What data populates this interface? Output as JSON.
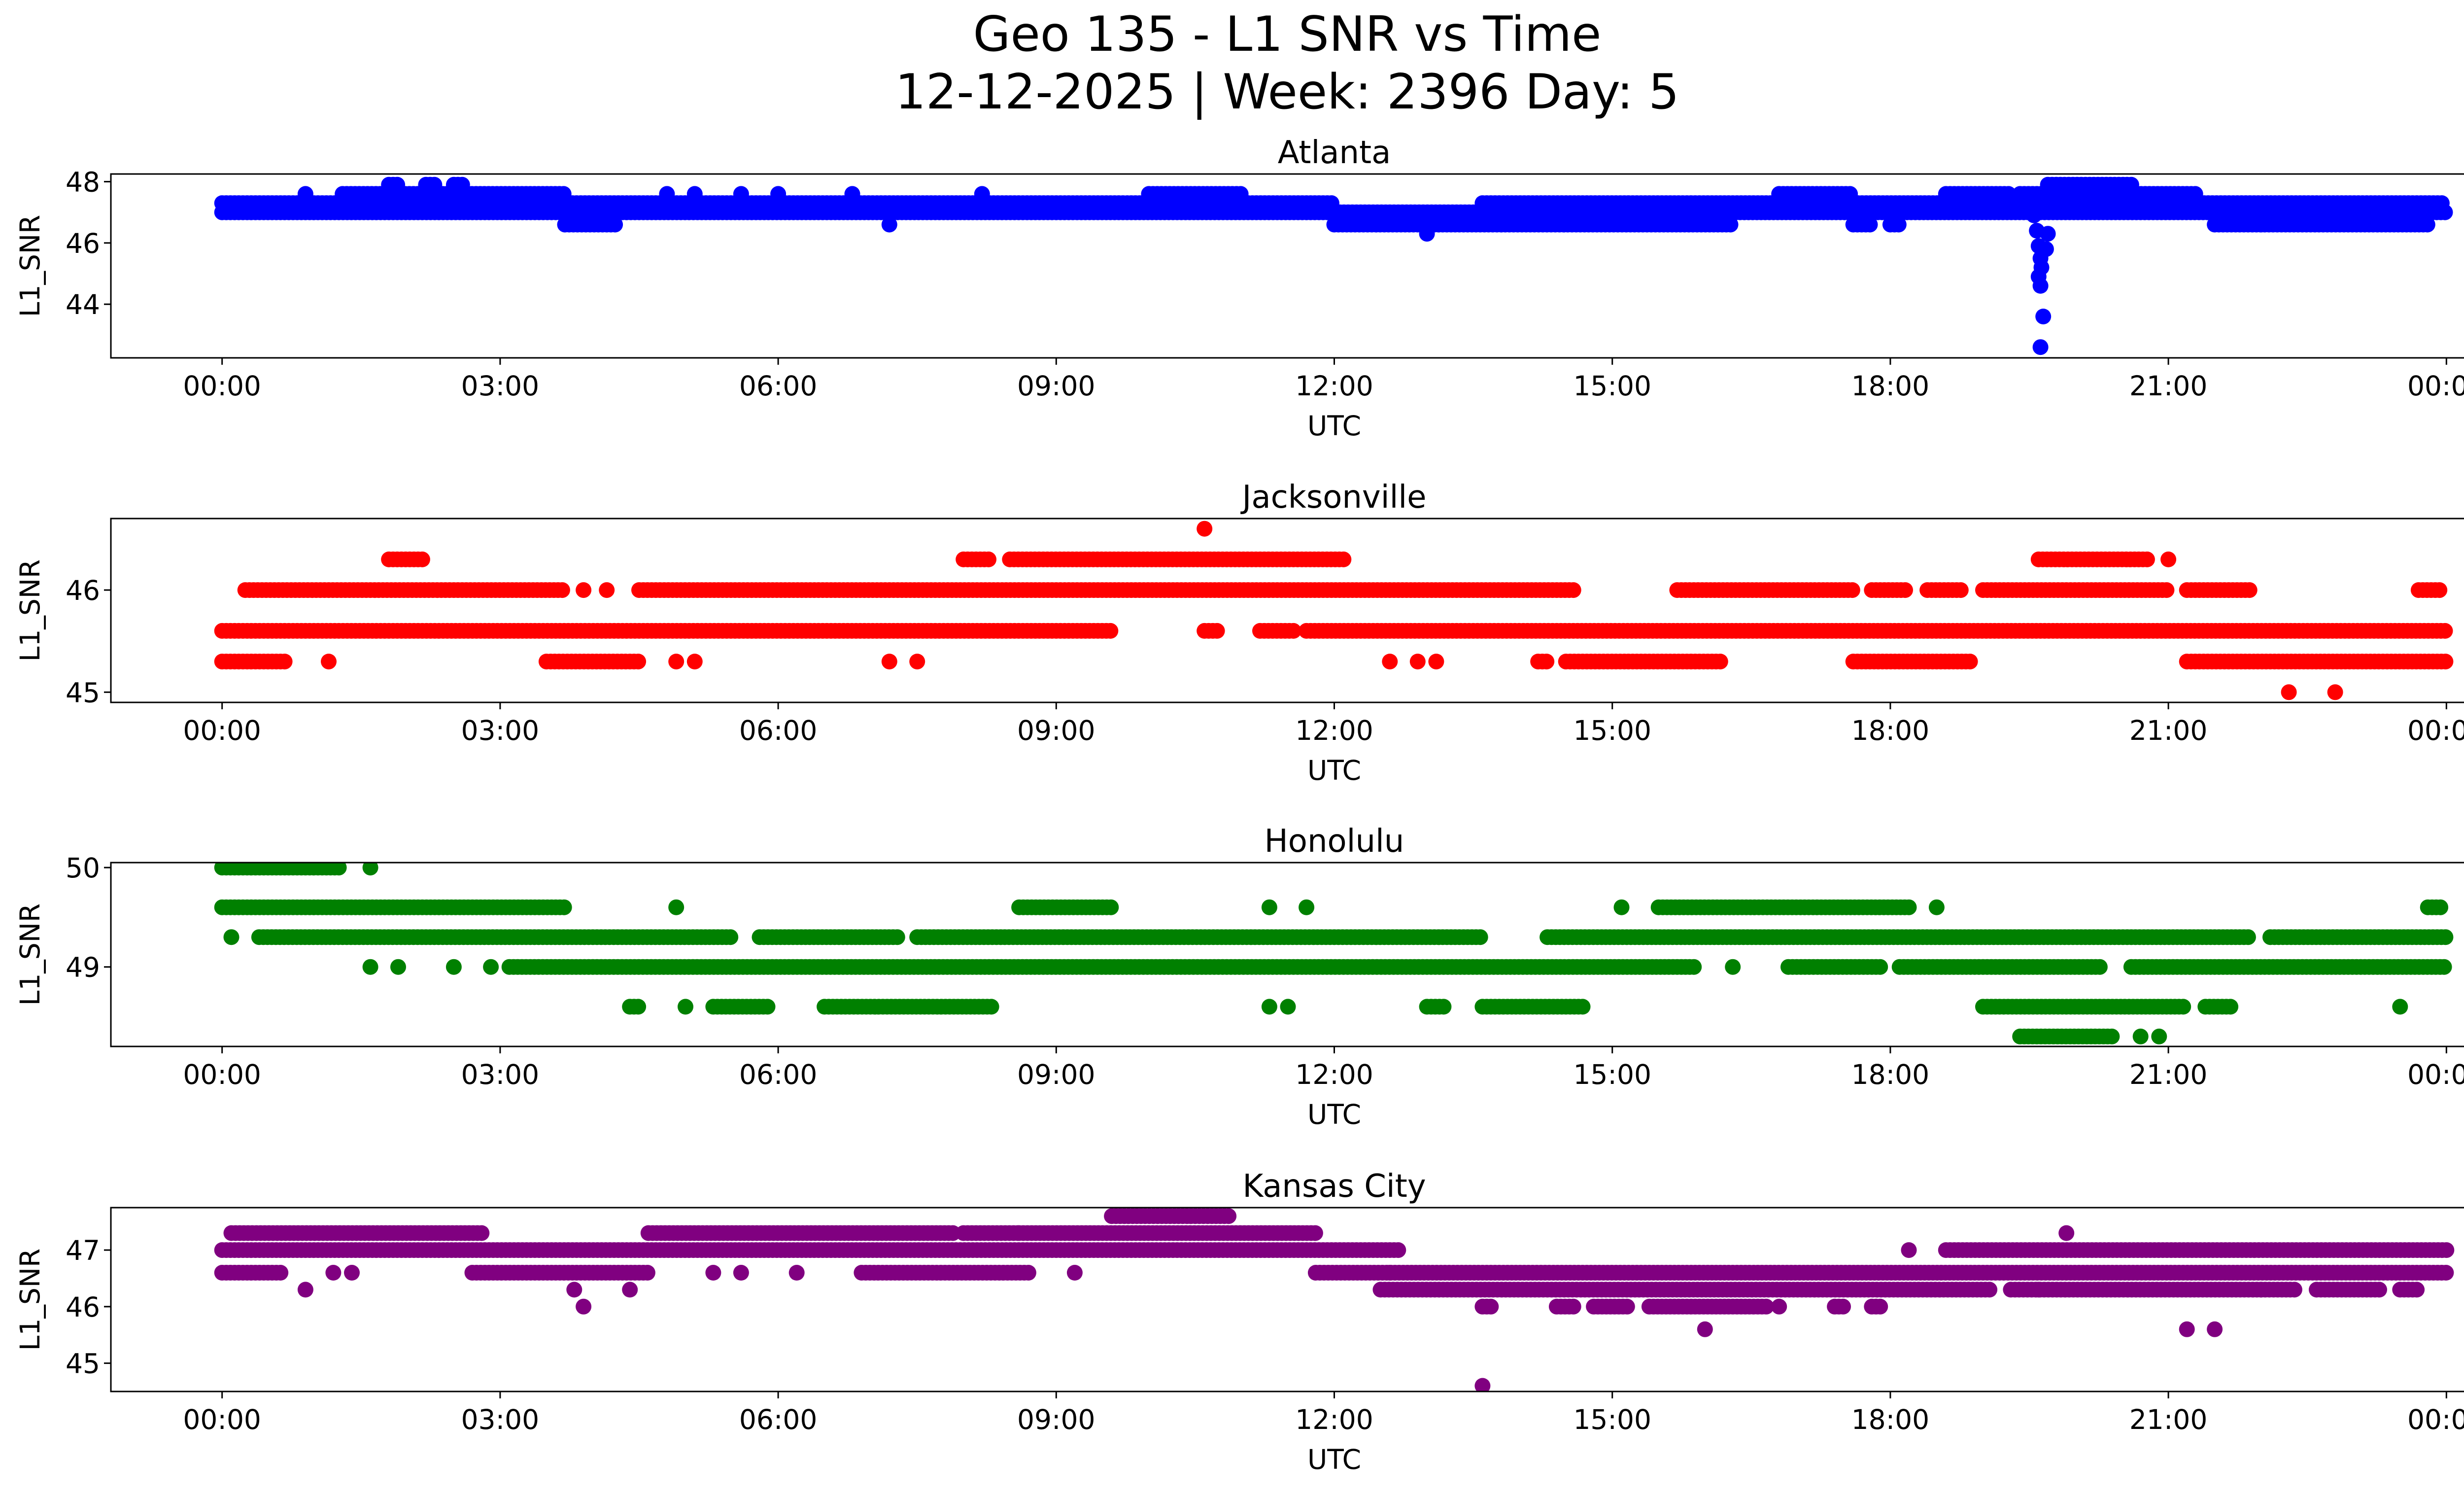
{
  "chart_data": {
    "type": "scatter",
    "title_line1": "Geo 135 - L1 SNR vs Time",
    "title_line2": "12-12-2025 | Week: 2396 Day: 5",
    "x_tick_labels": [
      "00:00",
      "03:00",
      "06:00",
      "09:00",
      "12:00",
      "15:00",
      "18:00",
      "21:00",
      "00:00"
    ],
    "x_tick_hours": [
      0,
      3,
      6,
      9,
      12,
      15,
      18,
      21,
      24
    ],
    "xlim_hours": [
      -1.2,
      25.2
    ],
    "xlabel": "UTC",
    "ylabel": "L1_SNR",
    "panels": [
      {
        "name": "Atlanta",
        "color": "#0000ff",
        "ylim": [
          42.25,
          48.25
        ],
        "yticks": [
          44,
          46,
          48
        ],
        "ytick_labels": [
          "44",
          "46",
          "48"
        ],
        "bands": [
          {
            "y": 47.3,
            "segments": [
              [
                0.0,
                12.0
              ],
              [
                13.6,
                23.95
              ]
            ]
          },
          {
            "y": 47.0,
            "segments": [
              [
                0.0,
                24.0
              ]
            ]
          },
          {
            "y": 46.6,
            "segments": [
              [
                3.7,
                4.25
              ],
              [
                12.0,
                16.3
              ],
              [
                17.6,
                17.8
              ],
              [
                18.0,
                18.1
              ],
              [
                21.5,
                23.8
              ]
            ]
          },
          {
            "y": 47.6,
            "segments": [
              [
                1.3,
                3.7
              ],
              [
                10.0,
                11.0
              ],
              [
                16.8,
                17.6
              ],
              [
                18.6,
                19.3
              ],
              [
                19.4,
                21.3
              ]
            ]
          },
          {
            "y": 47.9,
            "segments": [
              [
                1.8,
                1.9
              ],
              [
                2.2,
                2.3
              ],
              [
                2.5,
                2.6
              ],
              [
                19.7,
                20.6
              ]
            ]
          }
        ],
        "extra_points": [
          [
            0.9,
            47.6
          ],
          [
            4.8,
            47.6
          ],
          [
            5.1,
            47.6
          ],
          [
            5.6,
            47.6
          ],
          [
            6.0,
            47.6
          ],
          [
            6.8,
            47.6
          ],
          [
            7.2,
            46.6
          ],
          [
            8.2,
            47.6
          ],
          [
            13.0,
            46.3
          ],
          [
            22.0,
            46.6
          ],
          [
            19.55,
            46.9
          ],
          [
            19.58,
            46.4
          ],
          [
            19.6,
            45.9
          ],
          [
            19.62,
            45.5
          ],
          [
            19.63,
            45.2
          ],
          [
            19.6,
            44.9
          ],
          [
            19.62,
            44.6
          ],
          [
            19.65,
            43.6
          ],
          [
            19.62,
            42.6
          ],
          [
            19.7,
            46.3
          ],
          [
            19.68,
            45.8
          ]
        ]
      },
      {
        "name": "Jacksonville",
        "color": "#ff0000",
        "ylim": [
          44.9,
          46.7
        ],
        "yticks": [
          45,
          46
        ],
        "ytick_labels": [
          "45",
          "46"
        ],
        "bands": [
          {
            "y": 45.6,
            "segments": [
              [
                0.0,
                9.6
              ],
              [
                10.6,
                10.75
              ],
              [
                11.2,
                11.6
              ],
              [
                11.7,
                24.0
              ]
            ]
          },
          {
            "y": 46.0,
            "segments": [
              [
                0.25,
                3.7
              ],
              [
                4.5,
                14.6
              ],
              [
                15.7,
                17.6
              ],
              [
                17.8,
                18.2
              ],
              [
                18.4,
                18.8
              ],
              [
                19.0,
                21.0
              ],
              [
                21.2,
                21.9
              ],
              [
                23.7,
                23.95
              ]
            ]
          },
          {
            "y": 45.3,
            "segments": [
              [
                0.0,
                0.7
              ],
              [
                3.5,
                4.5
              ],
              [
                14.2,
                14.3
              ],
              [
                14.5,
                16.2
              ],
              [
                17.6,
                18.9
              ],
              [
                21.2,
                24.0
              ]
            ]
          },
          {
            "y": 46.3,
            "segments": [
              [
                1.8,
                2.2
              ],
              [
                8.0,
                8.3
              ],
              [
                8.5,
                12.1
              ],
              [
                19.6,
                20.8
              ]
            ]
          }
        ],
        "extra_points": [
          [
            10.6,
            46.6
          ],
          [
            1.15,
            45.3
          ],
          [
            4.9,
            45.3
          ],
          [
            5.1,
            45.3
          ],
          [
            7.2,
            45.3
          ],
          [
            7.5,
            45.3
          ],
          [
            12.6,
            45.3
          ],
          [
            12.9,
            45.3
          ],
          [
            13.1,
            45.3
          ],
          [
            21.0,
            46.3
          ],
          [
            22.3,
            45.0
          ],
          [
            22.8,
            45.0
          ],
          [
            3.9,
            46.0
          ],
          [
            4.15,
            46.0
          ]
        ]
      },
      {
        "name": "Honolulu",
        "color": "#008000",
        "ylim": [
          48.2,
          50.05
        ],
        "yticks": [
          49,
          50
        ],
        "ytick_labels": [
          "49",
          "50"
        ],
        "bands": [
          {
            "y": 49.6,
            "segments": [
              [
                0.0,
                3.7
              ],
              [
                8.6,
                9.6
              ],
              [
                15.5,
                18.2
              ],
              [
                23.8,
                23.95
              ]
            ]
          },
          {
            "y": 49.3,
            "segments": [
              [
                0.4,
                5.5
              ],
              [
                5.8,
                7.3
              ],
              [
                7.5,
                13.6
              ],
              [
                14.3,
                21.9
              ],
              [
                22.1,
                24.0
              ]
            ]
          },
          {
            "y": 49.0,
            "segments": [
              [
                3.1,
                15.9
              ],
              [
                16.9,
                17.9
              ],
              [
                18.1,
                20.3
              ],
              [
                20.6,
                24.0
              ]
            ]
          },
          {
            "y": 48.6,
            "segments": [
              [
                4.4,
                4.5
              ],
              [
                5.3,
                5.9
              ],
              [
                6.5,
                8.3
              ],
              [
                13.0,
                13.2
              ],
              [
                13.6,
                14.7
              ],
              [
                19.0,
                21.2
              ],
              [
                21.4,
                21.7
              ]
            ]
          },
          {
            "y": 48.3,
            "segments": [
              [
                19.4,
                20.4
              ]
            ]
          },
          {
            "y": 50.0,
            "segments": [
              [
                0.0,
                1.3
              ]
            ]
          }
        ],
        "extra_points": [
          [
            0.1,
            49.3
          ],
          [
            1.6,
            50.0
          ],
          [
            1.6,
            49.0
          ],
          [
            1.9,
            49.0
          ],
          [
            2.5,
            49.0
          ],
          [
            2.9,
            49.0
          ],
          [
            5.0,
            48.6
          ],
          [
            11.5,
            48.6
          ],
          [
            11.3,
            48.6
          ],
          [
            11.7,
            49.6
          ],
          [
            11.3,
            49.6
          ],
          [
            15.1,
            49.6
          ],
          [
            18.5,
            49.6
          ],
          [
            23.5,
            48.6
          ],
          [
            16.3,
            49.0
          ],
          [
            20.7,
            48.3
          ],
          [
            20.9,
            48.3
          ],
          [
            4.9,
            49.6
          ]
        ]
      },
      {
        "name": "Kansas City",
        "color": "#800080",
        "ylim": [
          44.5,
          47.75
        ],
        "yticks": [
          45,
          46,
          47
        ],
        "ytick_labels": [
          "45",
          "46",
          "47"
        ],
        "bands": [
          {
            "y": 47.0,
            "segments": [
              [
                0.0,
                12.7
              ],
              [
                18.6,
                24.0
              ]
            ]
          },
          {
            "y": 46.6,
            "segments": [
              [
                0.0,
                0.65
              ],
              [
                2.7,
                4.6
              ],
              [
                6.9,
                8.7
              ],
              [
                11.8,
                24.0
              ]
            ]
          },
          {
            "y": 47.3,
            "segments": [
              [
                0.1,
                2.8
              ],
              [
                4.6,
                7.9
              ],
              [
                8.0,
                8.6
              ],
              [
                8.6,
                11.8
              ]
            ]
          },
          {
            "y": 46.3,
            "segments": [
              [
                12.5,
                19.1
              ],
              [
                19.3,
                22.4
              ],
              [
                22.6,
                23.3
              ],
              [
                23.5,
                23.7
              ]
            ]
          },
          {
            "y": 46.0,
            "segments": [
              [
                13.6,
                13.7
              ],
              [
                14.4,
                14.6
              ],
              [
                14.8,
                15.2
              ],
              [
                15.4,
                16.7
              ],
              [
                17.4,
                17.5
              ],
              [
                17.8,
                17.9
              ]
            ]
          },
          {
            "y": 47.6,
            "segments": [
              [
                9.6,
                10.9
              ]
            ]
          }
        ],
        "extra_points": [
          [
            0.9,
            46.3
          ],
          [
            1.2,
            46.6
          ],
          [
            1.4,
            46.6
          ],
          [
            3.8,
            46.3
          ],
          [
            3.9,
            46.0
          ],
          [
            4.4,
            46.3
          ],
          [
            5.3,
            46.6
          ],
          [
            5.6,
            46.6
          ],
          [
            6.2,
            46.6
          ],
          [
            9.2,
            46.6
          ],
          [
            12.6,
            46.6
          ],
          [
            13.6,
            44.6
          ],
          [
            16.0,
            45.6
          ],
          [
            16.8,
            46.0
          ],
          [
            21.2,
            45.6
          ],
          [
            21.5,
            45.6
          ],
          [
            19.9,
            47.3
          ],
          [
            18.2,
            47.0
          ],
          [
            19.6,
            46.3
          ],
          [
            22.0,
            46.3
          ]
        ]
      }
    ]
  }
}
